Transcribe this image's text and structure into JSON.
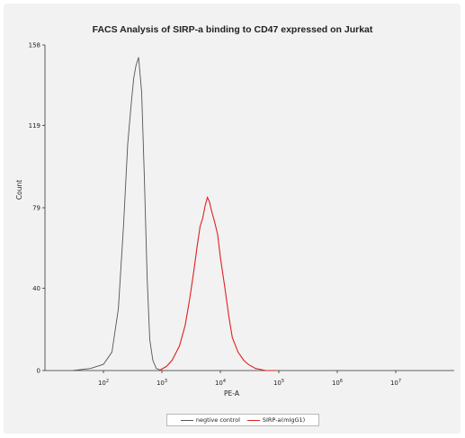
{
  "chart_data": {
    "type": "line",
    "title": "FACS Analysis of SIRP-a binding to CD47 expressed on Jurkat",
    "xlabel": "PE-A",
    "ylabel": "Count",
    "x_scale": "log",
    "xlim": [
      10,
      100000000
    ],
    "ylim": [
      0,
      150
    ],
    "x_ticks": [
      {
        "value": 100,
        "base": "10",
        "exp": "2"
      },
      {
        "value": 1000,
        "base": "10",
        "exp": "3"
      },
      {
        "value": 10000,
        "base": "10",
        "exp": "4"
      },
      {
        "value": 100000,
        "base": "10",
        "exp": "5"
      },
      {
        "value": 1000000,
        "base": "10",
        "exp": "6"
      },
      {
        "value": 10000000,
        "base": "10",
        "exp": "7"
      }
    ],
    "y_ticks": [
      "0",
      "40",
      "79",
      "119",
      "158"
    ],
    "y_tick_values": [
      0,
      40,
      79,
      119,
      158
    ],
    "grid": false,
    "legend_position": "bottom-center",
    "series": [
      {
        "name": "negtive control",
        "color": "#555555",
        "x": [
          30,
          60,
          100,
          140,
          180,
          220,
          260,
          300,
          330,
          360,
          400,
          450,
          500,
          560,
          620,
          700,
          800,
          1000,
          1300
        ],
        "y": [
          0,
          1,
          3,
          9,
          30,
          70,
          110,
          130,
          142,
          148,
          152,
          135,
          95,
          45,
          15,
          5,
          1,
          0,
          0
        ]
      },
      {
        "name": "SIRP-a(mIgG1)",
        "color": "#e02020",
        "x": [
          900,
          1200,
          1500,
          2000,
          2500,
          3000,
          3500,
          4000,
          4500,
          5000,
          5500,
          6000,
          6500,
          7000,
          8000,
          9000,
          10000,
          12000,
          14000,
          16000,
          20000,
          25000,
          30000,
          40000,
          60000,
          90000
        ],
        "y": [
          0,
          2,
          5,
          12,
          22,
          35,
          48,
          60,
          70,
          74,
          80,
          84,
          82,
          78,
          72,
          66,
          55,
          40,
          26,
          16,
          9,
          5,
          3,
          1,
          0,
          0
        ]
      }
    ]
  }
}
